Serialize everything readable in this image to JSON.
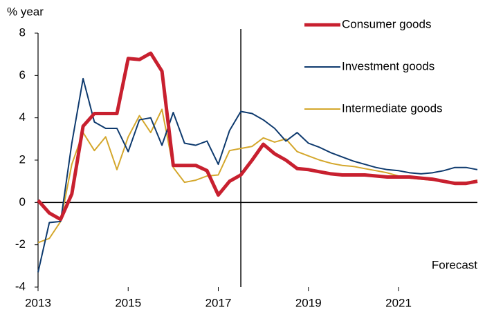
{
  "chart_data": {
    "type": "line",
    "y_label": "% year",
    "annotation": "Forecast",
    "forecast_start": 2017.5,
    "x": [
      2013,
      2013.25,
      2013.5,
      2013.75,
      2014,
      2014.25,
      2014.5,
      2014.75,
      2015,
      2015.25,
      2015.5,
      2015.75,
      2016,
      2016.25,
      2016.5,
      2016.75,
      2017,
      2017.25,
      2017.5,
      2017.75,
      2018,
      2018.25,
      2018.5,
      2018.75,
      2019,
      2019.25,
      2019.5,
      2019.75,
      2020,
      2020.25,
      2020.5,
      2020.75,
      2021,
      2021.25,
      2021.5,
      2021.75,
      2022,
      2022.25,
      2022.5,
      2022.75
    ],
    "series": [
      {
        "name": "Consumer goods",
        "color": "#c8202f",
        "values": [
          0.1,
          -0.5,
          -0.8,
          0.4,
          3.6,
          4.2,
          4.2,
          4.2,
          6.8,
          6.75,
          7.05,
          6.2,
          1.75,
          1.75,
          1.75,
          1.5,
          0.35,
          1.0,
          1.3,
          2.0,
          2.75,
          2.3,
          2.0,
          1.6,
          1.55,
          1.45,
          1.35,
          1.3,
          1.3,
          1.3,
          1.25,
          1.2,
          1.2,
          1.2,
          1.15,
          1.1,
          1.0,
          0.9,
          0.9,
          1.0
        ]
      },
      {
        "name": "Investment goods",
        "color": "#0e3a6e",
        "values": [
          -3.3,
          -0.95,
          -0.9,
          2.8,
          5.85,
          3.8,
          3.5,
          3.5,
          2.4,
          3.9,
          4.0,
          2.7,
          4.25,
          2.8,
          2.7,
          2.9,
          1.8,
          3.4,
          4.3,
          4.2,
          3.9,
          3.5,
          2.9,
          3.3,
          2.8,
          2.6,
          2.35,
          2.15,
          1.95,
          1.8,
          1.65,
          1.55,
          1.5,
          1.4,
          1.35,
          1.4,
          1.5,
          1.65,
          1.65,
          1.55
        ]
      },
      {
        "name": "Intermediate goods",
        "color": "#d4a72c",
        "values": [
          -1.9,
          -1.7,
          -0.9,
          1.8,
          3.3,
          2.45,
          3.1,
          1.55,
          3.1,
          4.1,
          3.3,
          4.4,
          1.65,
          0.95,
          1.05,
          1.25,
          1.3,
          2.45,
          2.55,
          2.65,
          3.05,
          2.85,
          3.0,
          2.4,
          2.2,
          2.0,
          1.85,
          1.75,
          1.7,
          1.6,
          1.5,
          1.4,
          1.25,
          1.15,
          1.1,
          1.05,
          1.0,
          0.95,
          0.95,
          1.05
        ]
      }
    ],
    "xlim": [
      2013,
      2022.75
    ],
    "xticks": [
      2013,
      2015,
      2017,
      2019,
      2021
    ],
    "ylim": [
      -4,
      8
    ],
    "yticks": [
      -4,
      -2,
      0,
      2,
      4,
      6,
      8
    ],
    "grid": false
  }
}
